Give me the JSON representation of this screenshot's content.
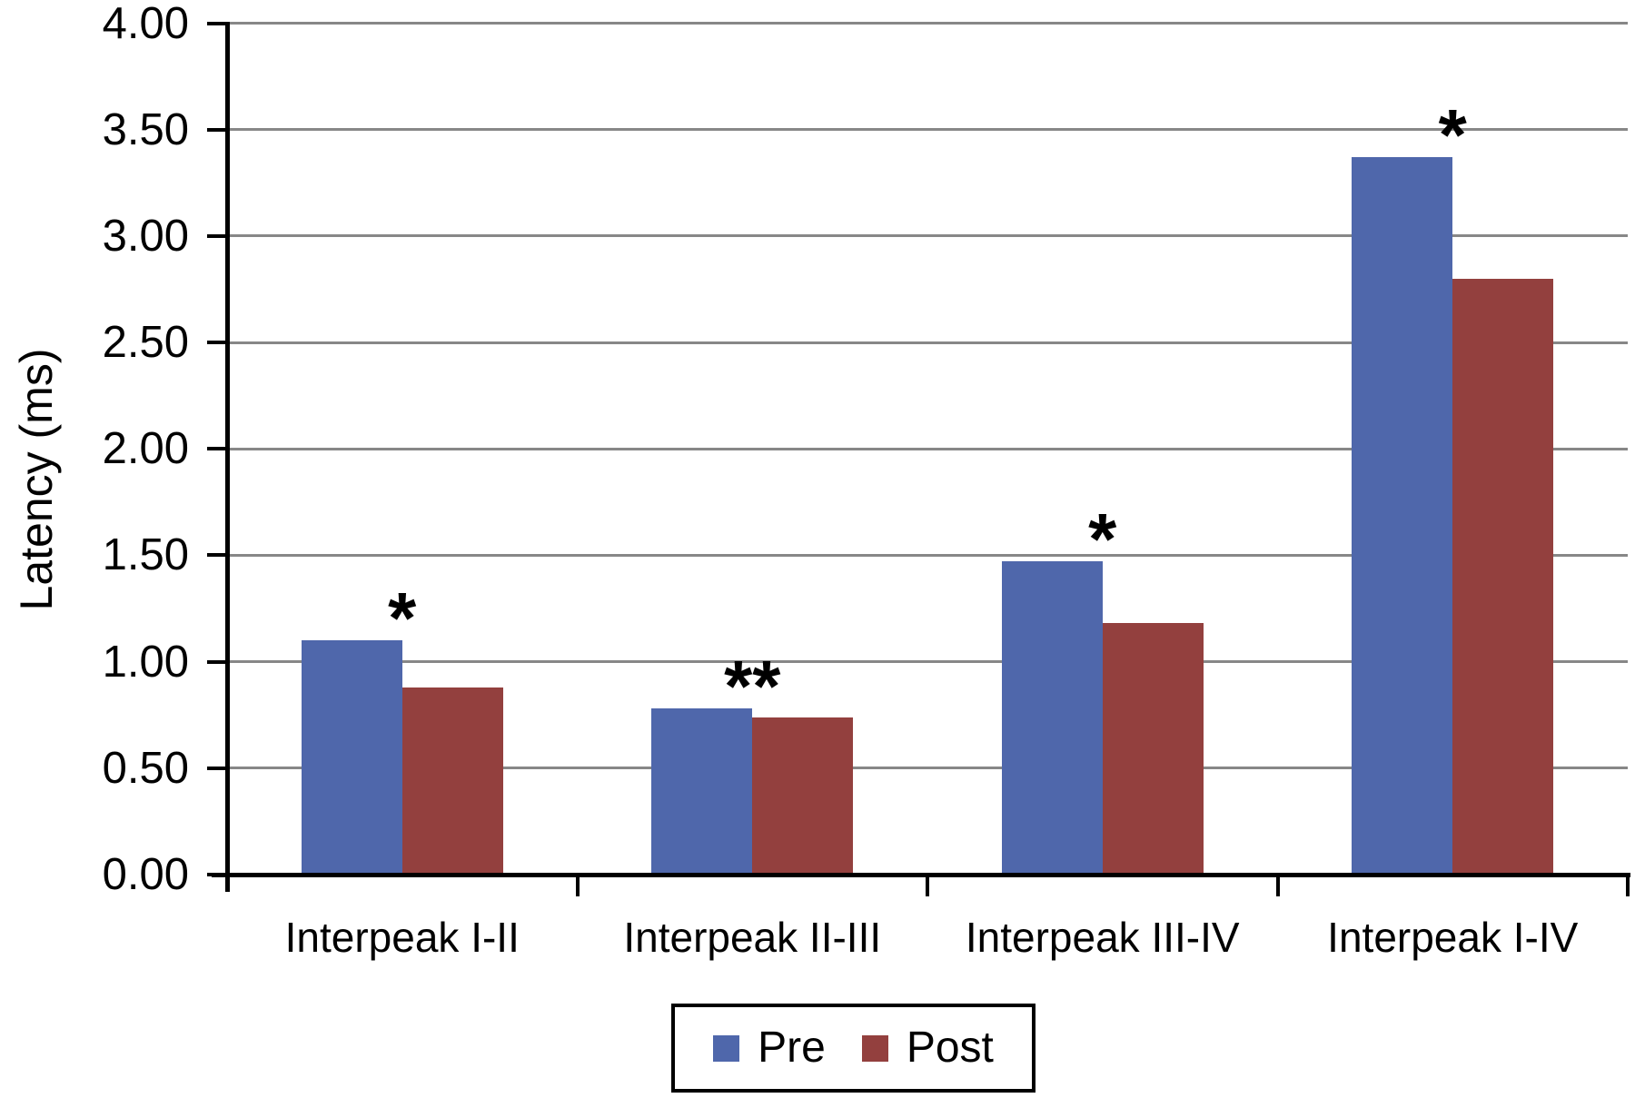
{
  "chart_data": {
    "type": "bar",
    "title": "",
    "ylabel": "Latency (ms)",
    "xlabel": "",
    "categories": [
      "Interpeak I-II",
      "Interpeak II-III",
      "Interpeak III-IV",
      "Interpeak I-IV"
    ],
    "series": [
      {
        "name": "Pre",
        "color": "#4F67AB",
        "values": [
          1.1,
          0.78,
          1.47,
          3.37
        ]
      },
      {
        "name": "Post",
        "color": "#93403E",
        "values": [
          0.88,
          0.74,
          1.18,
          2.8
        ]
      }
    ],
    "significance_markers": [
      "*",
      "**",
      "*",
      "*"
    ],
    "ylim": [
      0,
      4
    ],
    "ytick_step": 0.5,
    "ytick_labels": [
      "0.00",
      "0.50",
      "1.00",
      "1.50",
      "2.00",
      "2.50",
      "3.00",
      "3.50",
      "4.00"
    ],
    "grid": "horizontal",
    "gridline_color": "#878787",
    "axis_color": "#000000",
    "legend_position": "bottom-center"
  }
}
